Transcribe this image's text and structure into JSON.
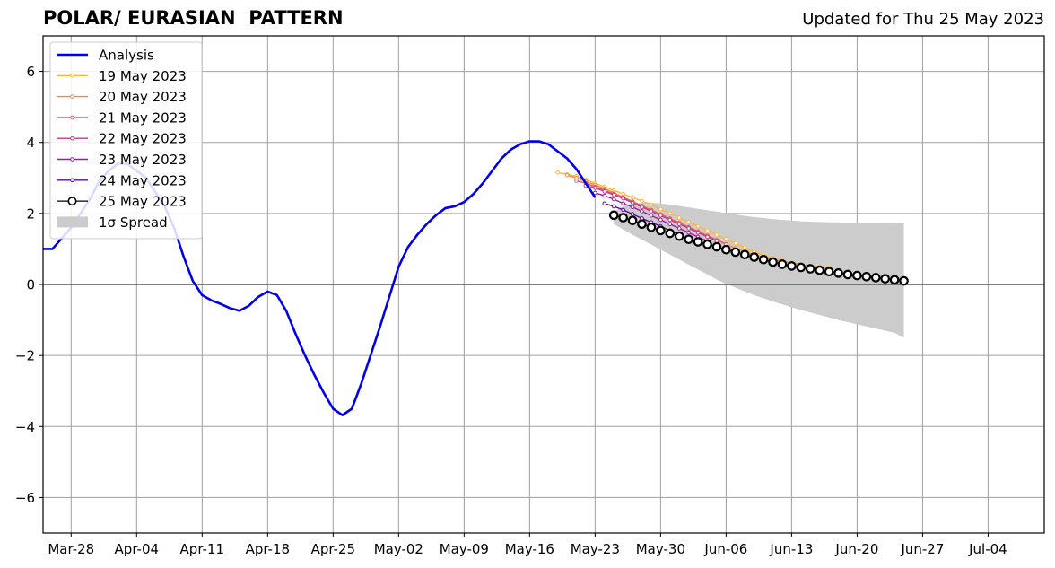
{
  "header": {
    "title": "POLAR/ EURASIAN  PATTERN",
    "updated": "Updated for Thu 25 May 2023"
  },
  "chart_data": {
    "type": "line",
    "title": "POLAR/ EURASIAN  PATTERN",
    "xlabel": "",
    "ylabel": "",
    "x_is_date": true,
    "xlim": [
      "2023-03-25",
      "2023-07-10"
    ],
    "ylim": [
      -7,
      7
    ],
    "xticks": [
      {
        "date": "2023-03-28",
        "label": "Mar-28"
      },
      {
        "date": "2023-04-04",
        "label": "Apr-04"
      },
      {
        "date": "2023-04-11",
        "label": "Apr-11"
      },
      {
        "date": "2023-04-18",
        "label": "Apr-18"
      },
      {
        "date": "2023-04-25",
        "label": "Apr-25"
      },
      {
        "date": "2023-05-02",
        "label": "May-02"
      },
      {
        "date": "2023-05-09",
        "label": "May-09"
      },
      {
        "date": "2023-05-16",
        "label": "May-16"
      },
      {
        "date": "2023-05-23",
        "label": "May-23"
      },
      {
        "date": "2023-05-30",
        "label": "May-30"
      },
      {
        "date": "2023-06-06",
        "label": "Jun-06"
      },
      {
        "date": "2023-06-13",
        "label": "Jun-13"
      },
      {
        "date": "2023-06-20",
        "label": "Jun-20"
      },
      {
        "date": "2023-06-27",
        "label": "Jun-27"
      },
      {
        "date": "2023-07-04",
        "label": "Jul-04"
      }
    ],
    "yticks": [
      {
        "value": -6,
        "label": "−6"
      },
      {
        "value": -4,
        "label": "−4"
      },
      {
        "value": -2,
        "label": "−2"
      },
      {
        "value": 0,
        "label": "0"
      },
      {
        "value": 2,
        "label": "2"
      },
      {
        "value": 4,
        "label": "4"
      },
      {
        "value": 6,
        "label": "6"
      }
    ],
    "grid": true,
    "legend_position": "upper left",
    "legend": [
      {
        "label": "Analysis",
        "color": "#0000ee",
        "style": "line"
      },
      {
        "label": "19 May 2023",
        "color": "#fcb63c",
        "style": "small-marker"
      },
      {
        "label": "20 May 2023",
        "color": "#f08c44",
        "style": "small-marker"
      },
      {
        "label": "21 May 2023",
        "color": "#e05c6c",
        "style": "small-marker"
      },
      {
        "label": "22 May 2023",
        "color": "#c03c8c",
        "style": "small-marker"
      },
      {
        "label": "23 May 2023",
        "color": "#96209c",
        "style": "small-marker"
      },
      {
        "label": "24 May 2023",
        "color": "#5a0a96",
        "style": "small-marker"
      },
      {
        "label": "25 May 2023",
        "color": "#000000",
        "style": "open-circle"
      },
      {
        "label": "1σ Spread",
        "color": "#cccccc",
        "style": "patch"
      }
    ],
    "analysis": {
      "name": "Analysis",
      "color": "#0000ee",
      "start_date": "2023-03-25",
      "values": [
        1.0,
        1.0,
        1.3,
        1.6,
        2.0,
        2.4,
        2.9,
        3.2,
        3.4,
        3.4,
        3.2,
        3.0,
        2.6,
        2.2,
        1.6,
        0.8,
        0.1,
        -0.3,
        -0.45,
        -0.55,
        -0.67,
        -0.74,
        -0.6,
        -0.35,
        -0.2,
        -0.3,
        -0.75,
        -1.4,
        -2.0,
        -2.55,
        -3.05,
        -3.5,
        -3.68,
        -3.5,
        -2.8,
        -2.0,
        -1.2,
        -0.35,
        0.5,
        1.05,
        1.4,
        1.7,
        1.95,
        2.15,
        2.2,
        2.32,
        2.55,
        2.85,
        3.2,
        3.55,
        3.8,
        3.95,
        4.03,
        4.03,
        3.95,
        3.75,
        3.55,
        3.25,
        2.85,
        2.45
      ]
    },
    "forecasts": [
      {
        "name": "19 May 2023",
        "color": "#fcb63c",
        "start_date": "2023-05-19",
        "values": [
          3.15,
          3.1,
          3.05,
          2.95,
          2.85,
          2.75,
          2.65,
          2.55,
          2.45,
          2.35,
          2.25,
          2.12,
          2.0,
          1.88,
          1.76,
          1.64,
          1.52,
          1.4,
          1.28,
          1.16,
          1.04,
          0.92,
          0.82,
          0.74,
          0.67,
          0.61,
          0.56,
          0.52,
          0.5,
          0.48
        ]
      },
      {
        "name": "20 May 2023",
        "color": "#f08c44",
        "start_date": "2023-05-20",
        "values": [
          3.08,
          3.0,
          2.9,
          2.8,
          2.7,
          2.58,
          2.46,
          2.34,
          2.22,
          2.1,
          1.98,
          1.86,
          1.74,
          1.62,
          1.5,
          1.38,
          1.26,
          1.14,
          1.02,
          0.92,
          0.83,
          0.76,
          0.7,
          0.65,
          0.6,
          0.56,
          0.52,
          0.48,
          0.45
        ]
      },
      {
        "name": "21 May 2023",
        "color": "#e05c6c",
        "start_date": "2023-05-21",
        "values": [
          2.92,
          2.85,
          2.75,
          2.65,
          2.55,
          2.45,
          2.33,
          2.21,
          2.09,
          1.97,
          1.85,
          1.73,
          1.61,
          1.49,
          1.37,
          1.25,
          1.13
        ]
      },
      {
        "name": "22 May 2023",
        "color": "#c03c8c",
        "start_date": "2023-05-22",
        "values": [
          2.78,
          2.72,
          2.62,
          2.52,
          2.42,
          2.3,
          2.18,
          2.06,
          1.94,
          1.82,
          1.7,
          1.58,
          1.46,
          1.34,
          1.22
        ]
      },
      {
        "name": "23 May 2023",
        "color": "#96209c",
        "start_date": "2023-05-23",
        "values": [
          2.58,
          2.5,
          2.4,
          2.28,
          2.18,
          2.06,
          1.94,
          1.82,
          1.7,
          1.58,
          1.46,
          1.34,
          1.22
        ]
      },
      {
        "name": "24 May 2023",
        "color": "#5a0a96",
        "start_date": "2023-05-24",
        "values": [
          2.28,
          2.2,
          2.1,
          1.98,
          1.86,
          1.75,
          1.64,
          1.52,
          1.4,
          1.28,
          1.16
        ]
      }
    ],
    "main_forecast": {
      "name": "25 May 2023",
      "start_date": "2023-05-25",
      "values": [
        1.95,
        1.88,
        1.8,
        1.7,
        1.61,
        1.52,
        1.44,
        1.36,
        1.27,
        1.2,
        1.13,
        1.06,
        0.98,
        0.91,
        0.84,
        0.77,
        0.7,
        0.63,
        0.57,
        0.52,
        0.48,
        0.44,
        0.4,
        0.36,
        0.32,
        0.28,
        0.25,
        0.22,
        0.19,
        0.16,
        0.13,
        0.1
      ]
    },
    "spread": {
      "label": "1σ Spread",
      "start_date": "2023-05-25",
      "upper": [
        2.05,
        2.2,
        2.27,
        2.3,
        2.3,
        2.28,
        2.25,
        2.21,
        2.17,
        2.13,
        2.09,
        2.05,
        2.01,
        1.97,
        1.93,
        1.9,
        1.87,
        1.84,
        1.82,
        1.8,
        1.78,
        1.77,
        1.76,
        1.75,
        1.75,
        1.74,
        1.74,
        1.73,
        1.73,
        1.72,
        1.72,
        1.72
      ],
      "lower": [
        1.7,
        1.55,
        1.4,
        1.26,
        1.12,
        0.98,
        0.84,
        0.7,
        0.56,
        0.42,
        0.28,
        0.14,
        0.02,
        -0.09,
        -0.2,
        -0.3,
        -0.39,
        -0.48,
        -0.56,
        -0.64,
        -0.72,
        -0.79,
        -0.86,
        -0.93,
        -1.0,
        -1.06,
        -1.12,
        -1.18,
        -1.24,
        -1.3,
        -1.36,
        -1.5
      ]
    }
  }
}
